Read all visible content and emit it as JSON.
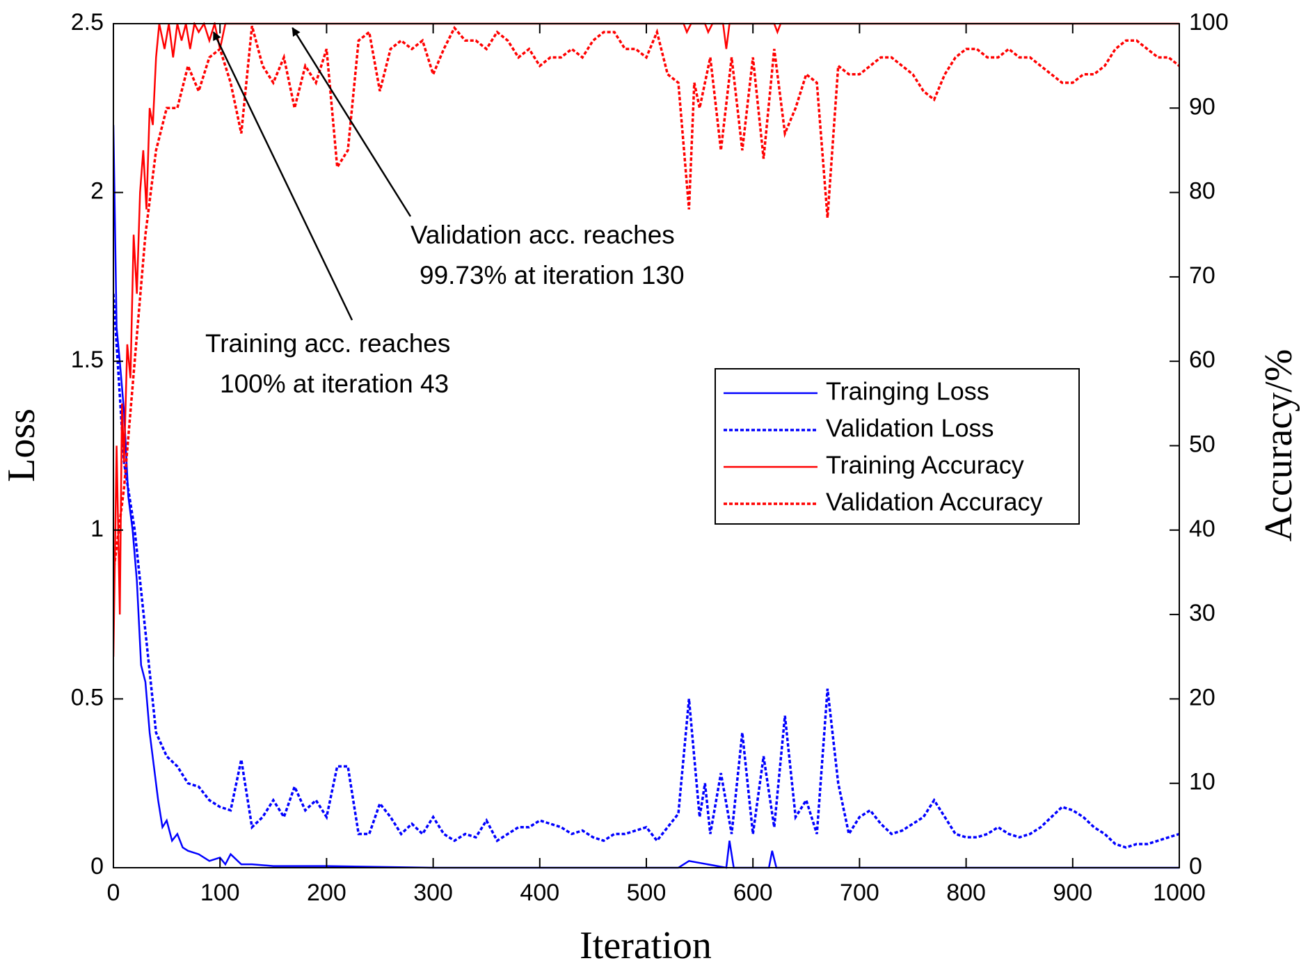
{
  "chart_data": {
    "type": "line",
    "xlabel": "Iteration",
    "ylabel": "Loss",
    "y2label": "Accuracy/%",
    "xlim": [
      0,
      1000
    ],
    "xticks": [
      0,
      100,
      200,
      300,
      400,
      500,
      600,
      700,
      800,
      900,
      1000
    ],
    "ylim": [
      0,
      2.5
    ],
    "yticks": [
      0,
      0.5,
      1,
      1.5,
      2,
      2.5
    ],
    "y2lim": [
      0,
      100
    ],
    "y2ticks": [
      0,
      10,
      20,
      30,
      40,
      50,
      60,
      70,
      80,
      90,
      100
    ],
    "grid": false,
    "legend": "right",
    "series": [
      {
        "name": "Trainging Loss",
        "color": "#0000ff",
        "dashed": false,
        "axis": "y",
        "x": [
          0,
          3,
          6,
          10,
          14,
          18,
          22,
          26,
          30,
          34,
          38,
          42,
          46,
          50,
          55,
          60,
          65,
          70,
          80,
          90,
          100,
          105,
          110,
          120,
          130,
          150,
          200,
          300,
          400,
          500,
          530,
          540,
          575,
          578,
          582,
          600,
          615,
          618,
          622,
          640,
          700,
          800,
          900,
          1000
        ],
        "values": [
          2.2,
          1.6,
          1.5,
          1.35,
          1.1,
          1.0,
          0.85,
          0.6,
          0.55,
          0.4,
          0.3,
          0.2,
          0.12,
          0.14,
          0.08,
          0.1,
          0.06,
          0.05,
          0.04,
          0.02,
          0.03,
          0.01,
          0.04,
          0.01,
          0.01,
          0.005,
          0.005,
          0,
          0,
          0,
          0,
          0.02,
          0,
          0.08,
          0,
          0,
          0,
          0.05,
          0,
          0,
          0,
          0,
          0,
          0
        ]
      },
      {
        "name": "Validation Loss",
        "color": "#0000ff",
        "dashed": true,
        "axis": "y",
        "x": [
          0,
          10,
          20,
          30,
          40,
          50,
          60,
          70,
          80,
          90,
          100,
          110,
          120,
          130,
          140,
          150,
          160,
          170,
          180,
          190,
          200,
          210,
          220,
          230,
          240,
          250,
          260,
          270,
          280,
          290,
          300,
          310,
          320,
          330,
          340,
          350,
          360,
          370,
          380,
          390,
          400,
          410,
          420,
          430,
          440,
          450,
          460,
          470,
          480,
          490,
          500,
          510,
          520,
          530,
          540,
          550,
          555,
          560,
          570,
          580,
          590,
          600,
          610,
          620,
          630,
          640,
          650,
          660,
          670,
          680,
          690,
          700,
          710,
          720,
          730,
          740,
          750,
          760,
          770,
          780,
          790,
          800,
          810,
          820,
          830,
          840,
          850,
          860,
          870,
          880,
          890,
          900,
          910,
          920,
          930,
          940,
          950,
          960,
          970,
          980,
          990,
          1000
        ],
        "values": [
          1.7,
          1.2,
          1.0,
          0.7,
          0.4,
          0.33,
          0.3,
          0.25,
          0.24,
          0.2,
          0.18,
          0.17,
          0.32,
          0.12,
          0.15,
          0.2,
          0.15,
          0.24,
          0.17,
          0.2,
          0.15,
          0.3,
          0.3,
          0.1,
          0.1,
          0.19,
          0.15,
          0.1,
          0.13,
          0.1,
          0.15,
          0.1,
          0.08,
          0.1,
          0.09,
          0.14,
          0.08,
          0.1,
          0.12,
          0.12,
          0.14,
          0.13,
          0.12,
          0.1,
          0.11,
          0.09,
          0.08,
          0.1,
          0.1,
          0.11,
          0.12,
          0.08,
          0.12,
          0.16,
          0.5,
          0.15,
          0.25,
          0.1,
          0.28,
          0.1,
          0.4,
          0.1,
          0.33,
          0.12,
          0.45,
          0.15,
          0.2,
          0.1,
          0.53,
          0.25,
          0.1,
          0.15,
          0.17,
          0.13,
          0.1,
          0.11,
          0.13,
          0.15,
          0.2,
          0.15,
          0.1,
          0.09,
          0.09,
          0.1,
          0.12,
          0.1,
          0.09,
          0.1,
          0.12,
          0.15,
          0.18,
          0.17,
          0.15,
          0.12,
          0.1,
          0.07,
          0.06,
          0.07,
          0.07,
          0.08,
          0.09,
          0.1
        ]
      },
      {
        "name": "Training Accuracy",
        "color": "#ff0000",
        "dashed": false,
        "axis": "y2",
        "x": [
          0,
          3,
          6,
          8,
          10,
          13,
          16,
          19,
          22,
          25,
          28,
          31,
          34,
          37,
          40,
          43,
          48,
          52,
          56,
          60,
          64,
          68,
          72,
          76,
          80,
          85,
          90,
          95,
          100,
          105,
          110,
          150,
          535,
          538,
          542,
          555,
          558,
          562,
          572,
          575,
          578,
          620,
          623,
          626,
          1000
        ],
        "values": [
          25,
          50,
          30,
          55,
          48,
          62,
          58,
          75,
          68,
          80,
          85,
          78,
          90,
          88,
          96,
          100,
          97,
          100,
          96,
          100,
          98,
          100,
          97,
          100,
          99,
          100,
          98,
          100,
          97,
          100,
          100,
          100,
          100,
          99,
          100,
          100,
          99,
          100,
          100,
          97,
          100,
          100,
          99,
          100,
          100
        ]
      },
      {
        "name": "Validation Accuracy",
        "color": "#ff0000",
        "dashed": true,
        "axis": "y2",
        "x": [
          0,
          10,
          20,
          30,
          40,
          50,
          60,
          70,
          80,
          90,
          100,
          110,
          120,
          130,
          140,
          150,
          160,
          170,
          180,
          190,
          200,
          210,
          220,
          230,
          240,
          250,
          260,
          270,
          280,
          290,
          300,
          310,
          320,
          330,
          340,
          350,
          360,
          370,
          380,
          390,
          400,
          410,
          420,
          430,
          440,
          450,
          460,
          470,
          480,
          490,
          500,
          510,
          520,
          530,
          540,
          545,
          550,
          560,
          570,
          580,
          590,
          600,
          610,
          620,
          630,
          640,
          650,
          660,
          670,
          680,
          690,
          700,
          710,
          720,
          730,
          740,
          750,
          760,
          770,
          780,
          790,
          800,
          810,
          820,
          830,
          840,
          850,
          860,
          870,
          880,
          890,
          900,
          910,
          920,
          930,
          940,
          950,
          960,
          970,
          980,
          990,
          1000
        ],
        "values": [
          35,
          45,
          60,
          75,
          85,
          90,
          90,
          95,
          92,
          96,
          97,
          93,
          87,
          99.73,
          95,
          93,
          96,
          90,
          95,
          93,
          97,
          83,
          85,
          98,
          99,
          92,
          97,
          98,
          97,
          98,
          94,
          97,
          99.5,
          98,
          98,
          97,
          99,
          98,
          96,
          97,
          95,
          96,
          96,
          97,
          96,
          98,
          99,
          99,
          97,
          97,
          96,
          99,
          94,
          93,
          78,
          93,
          90,
          96,
          85,
          96,
          85,
          96,
          84,
          97,
          87,
          90,
          94,
          93,
          77,
          95,
          94,
          94,
          95,
          96,
          96,
          95,
          94,
          92,
          91,
          94,
          96,
          97,
          97,
          96,
          96,
          97,
          96,
          96,
          95,
          94,
          93,
          93,
          94,
          94,
          95,
          97,
          98,
          98,
          97,
          96,
          96,
          95
        ]
      }
    ],
    "annotations": [
      {
        "lines": [
          "Validation acc. reaches",
          "99.73% at iteration 130"
        ],
        "x": 168,
        "y": 99.5
      },
      {
        "lines": [
          "Training acc. reaches",
          "100% at iteration 43"
        ],
        "x": 94,
        "y": 99
      }
    ]
  }
}
